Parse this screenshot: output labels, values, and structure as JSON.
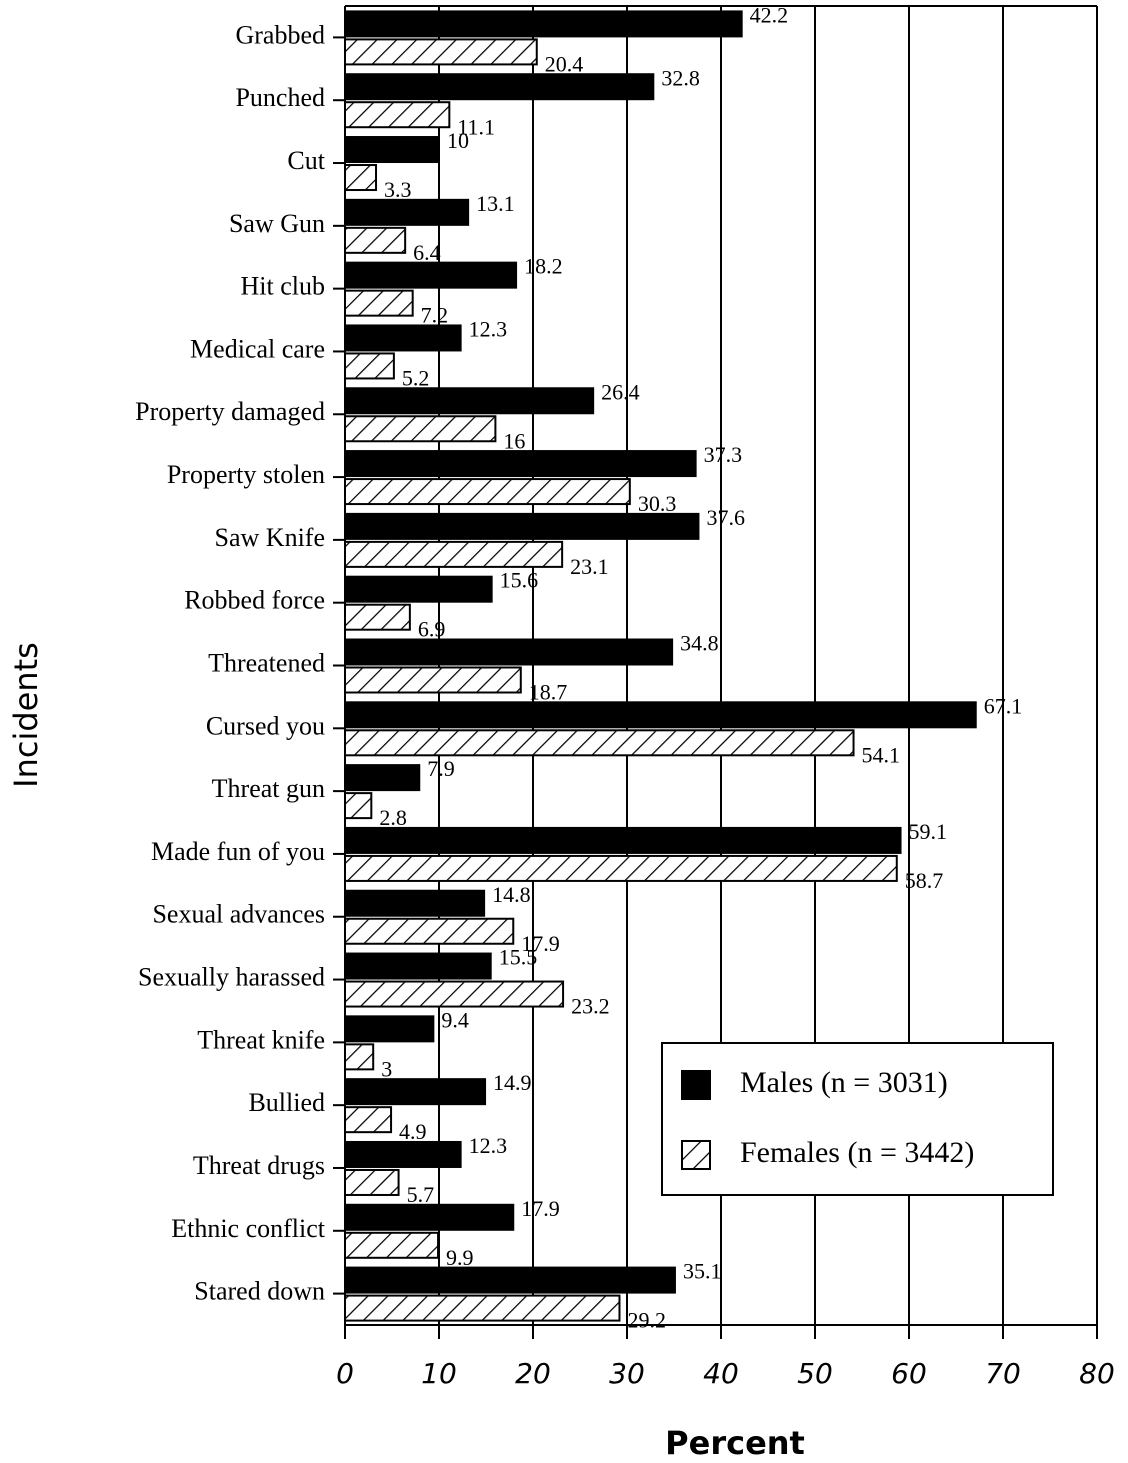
{
  "chart_data": {
    "type": "barh",
    "xlabel": "Percent",
    "ylabel": "Incidents",
    "categories": [
      "Grabbed",
      "Punched",
      "Cut",
      "Saw Gun",
      "Hit club",
      "Medical care",
      "Property damaged",
      "Property stolen",
      "Saw Knife",
      "Robbed force",
      "Threatened",
      "Cursed you",
      "Threat gun",
      "Made fun of you",
      "Sexual advances",
      "Sexually harassed",
      "Threat knife",
      "Bullied",
      "Threat drugs",
      "Ethnic conflict",
      "Stared down"
    ],
    "series": [
      {
        "name": "Males (n = 3031)",
        "color": "#000000",
        "pattern": "solid",
        "values": [
          42.2,
          32.8,
          10,
          13.1,
          18.2,
          12.3,
          26.4,
          37.3,
          37.6,
          15.6,
          34.8,
          67.1,
          7.9,
          59.1,
          14.8,
          15.5,
          9.4,
          14.9,
          12.3,
          17.9,
          35.1
        ]
      },
      {
        "name": "Females (n = 3442)",
        "color": "#000000",
        "pattern": "hatch",
        "values": [
          20.4,
          11.1,
          3.3,
          6.4,
          7.2,
          5.2,
          16,
          30.3,
          23.1,
          6.9,
          18.7,
          54.1,
          2.8,
          58.7,
          17.9,
          23.2,
          3,
          4.9,
          5.7,
          9.9,
          29.2
        ]
      }
    ],
    "xlim": [
      0,
      80
    ],
    "xticks": [
      0,
      10,
      20,
      30,
      40,
      50,
      60,
      70,
      80
    ],
    "grid": true,
    "legend": "lower right"
  }
}
